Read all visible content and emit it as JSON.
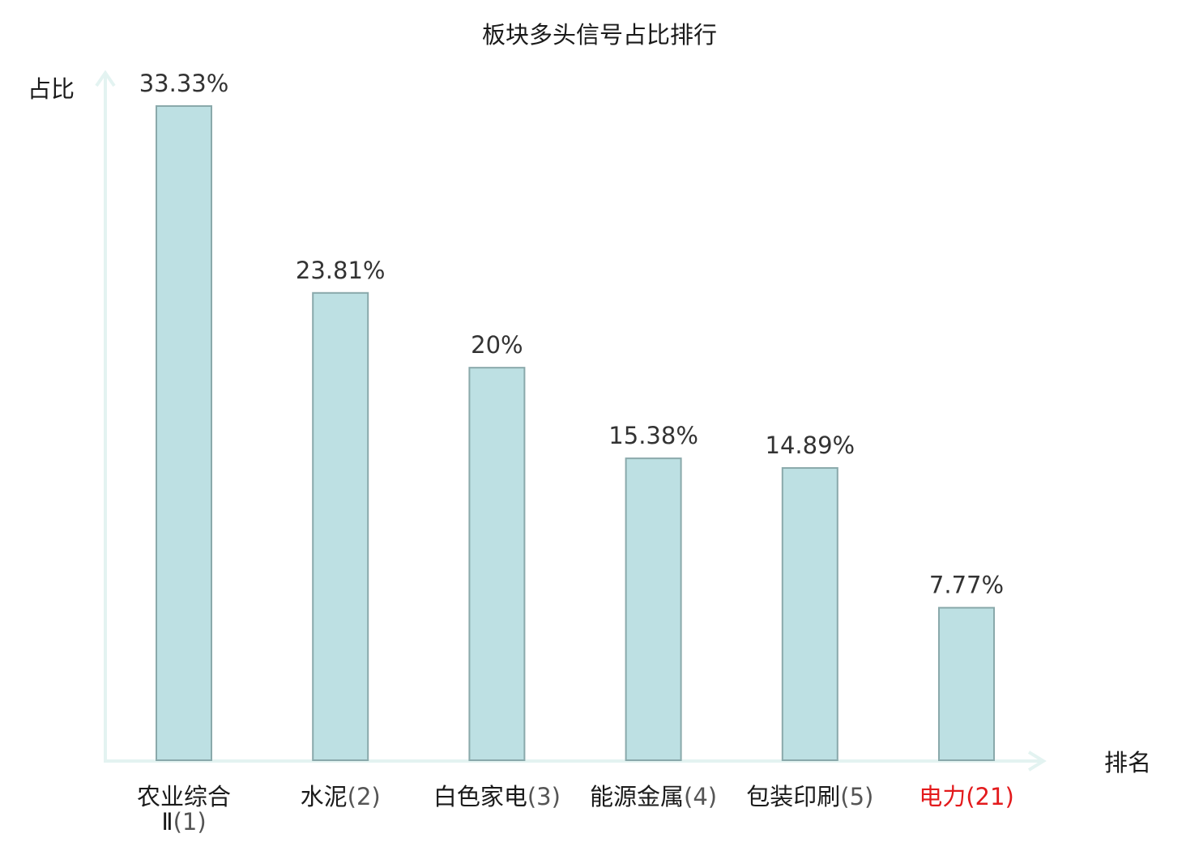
{
  "chart_data": {
    "type": "bar",
    "title": "板块多头信号占比排行",
    "ylabel": "占比",
    "xlabel": "排名",
    "ylim": [
      0,
      35
    ],
    "grid": false,
    "categories": [
      {
        "name": "农业综合",
        "name2": "Ⅱ",
        "rank": "(1)",
        "highlight": false
      },
      {
        "name": "水泥",
        "rank": "(2)",
        "highlight": false
      },
      {
        "name": "白色家电",
        "rank": "(3)",
        "highlight": false
      },
      {
        "name": "能源金属",
        "rank": "(4)",
        "highlight": false
      },
      {
        "name": "包装印刷",
        "rank": "(5)",
        "highlight": false
      },
      {
        "name": "电力",
        "rank": "(21)",
        "highlight": true
      }
    ],
    "values": [
      33.33,
      23.81,
      20,
      15.38,
      14.89,
      7.77
    ],
    "value_labels": [
      "33.33%",
      "23.81%",
      "20%",
      "15.38%",
      "14.89%",
      "7.77%"
    ]
  },
  "colors": {
    "bar_fill": "#bde0e3",
    "bar_stroke": "#8aa9ab",
    "axis": "#e3f3f1",
    "highlight": "#e31a1c"
  }
}
